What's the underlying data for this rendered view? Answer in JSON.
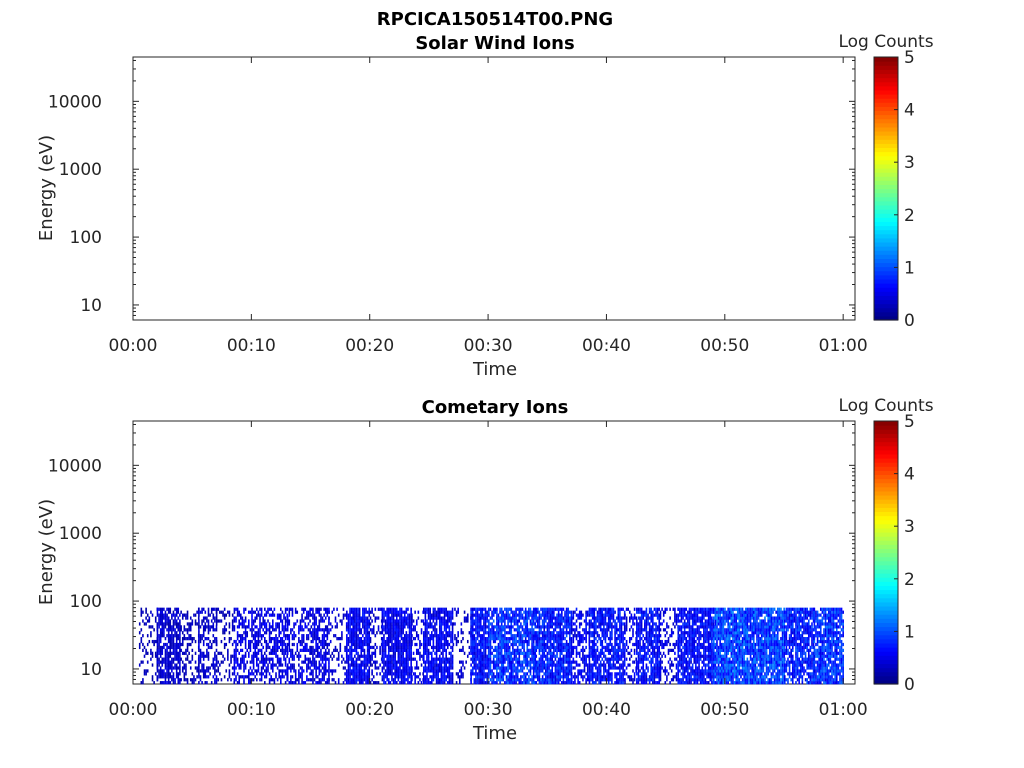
{
  "figure": {
    "title": "RPCICA150514T00.PNG"
  },
  "chart_data": [
    {
      "type": "heatmap",
      "title": "Solar Wind Ions",
      "xlabel": "Time",
      "ylabel": "Energy (eV)",
      "x_ticks": [
        "00:00",
        "00:10",
        "00:20",
        "00:30",
        "00:40",
        "00:50",
        "01:00"
      ],
      "x_range_minutes": [
        0,
        61
      ],
      "y_scale": "log",
      "y_ticks": [
        10,
        100,
        1000,
        10000
      ],
      "y_tick_labels": [
        "10",
        "100",
        "1000",
        "10000"
      ],
      "ylim": [
        6,
        45000
      ],
      "colorbar": {
        "label": "Log Counts",
        "ticks": [
          "0",
          "1",
          "2",
          "3",
          "4",
          "5"
        ],
        "range": [
          0,
          5
        ],
        "colormap": "jet"
      },
      "data_description": "no counts",
      "data": []
    },
    {
      "type": "heatmap",
      "title": "Cometary Ions",
      "xlabel": "Time",
      "ylabel": "Energy (eV)",
      "x_ticks": [
        "00:00",
        "00:10",
        "00:20",
        "00:30",
        "00:40",
        "00:50",
        "01:00"
      ],
      "x_range_minutes": [
        0,
        61
      ],
      "y_scale": "log",
      "y_ticks": [
        10,
        100,
        1000,
        10000
      ],
      "y_tick_labels": [
        "10",
        "100",
        "1000",
        "10000"
      ],
      "ylim": [
        6,
        45000
      ],
      "colorbar": {
        "label": "Log Counts",
        "ticks": [
          "0",
          "1",
          "2",
          "3",
          "4",
          "5"
        ],
        "range": [
          0,
          5
        ],
        "colormap": "jet"
      },
      "energy_range_eV": [
        6,
        80
      ],
      "time_range_minutes": [
        0.5,
        60
      ],
      "bands": [
        {
          "t_start": 0.5,
          "t_end": 2.0,
          "density": 0.3,
          "log_counts": 0.3
        },
        {
          "t_start": 2.0,
          "t_end": 4.0,
          "density": 0.75,
          "log_counts": 0.4
        },
        {
          "t_start": 4.0,
          "t_end": 5.5,
          "density": 0.35,
          "log_counts": 0.3
        },
        {
          "t_start": 5.5,
          "t_end": 7.0,
          "density": 0.5,
          "log_counts": 0.4
        },
        {
          "t_start": 7.0,
          "t_end": 8.5,
          "density": 0.25,
          "log_counts": 0.3
        },
        {
          "t_start": 8.5,
          "t_end": 13.0,
          "density": 0.55,
          "log_counts": 0.5
        },
        {
          "t_start": 13.0,
          "t_end": 15.0,
          "density": 0.45,
          "log_counts": 0.5
        },
        {
          "t_start": 15.0,
          "t_end": 16.5,
          "density": 0.65,
          "log_counts": 0.5
        },
        {
          "t_start": 16.5,
          "t_end": 18.0,
          "density": 0.25,
          "log_counts": 0.4
        },
        {
          "t_start": 18.0,
          "t_end": 20.0,
          "density": 0.85,
          "log_counts": 0.6
        },
        {
          "t_start": 20.0,
          "t_end": 21.0,
          "density": 0.3,
          "log_counts": 0.4
        },
        {
          "t_start": 21.0,
          "t_end": 23.5,
          "density": 0.85,
          "log_counts": 0.6
        },
        {
          "t_start": 23.5,
          "t_end": 24.5,
          "density": 0.4,
          "log_counts": 0.5
        },
        {
          "t_start": 24.5,
          "t_end": 27.0,
          "density": 0.8,
          "log_counts": 0.6
        },
        {
          "t_start": 27.0,
          "t_end": 28.5,
          "density": 0.2,
          "log_counts": 0.4
        },
        {
          "t_start": 28.5,
          "t_end": 30.0,
          "density": 0.85,
          "log_counts": 0.7
        },
        {
          "t_start": 30.0,
          "t_end": 34.0,
          "density": 0.8,
          "log_counts": 0.9
        },
        {
          "t_start": 34.0,
          "t_end": 37.0,
          "density": 0.85,
          "log_counts": 0.8
        },
        {
          "t_start": 37.0,
          "t_end": 38.5,
          "density": 0.5,
          "log_counts": 0.6
        },
        {
          "t_start": 38.5,
          "t_end": 41.5,
          "density": 0.75,
          "log_counts": 0.7
        },
        {
          "t_start": 41.5,
          "t_end": 42.5,
          "density": 0.35,
          "log_counts": 0.5
        },
        {
          "t_start": 42.5,
          "t_end": 44.5,
          "density": 0.8,
          "log_counts": 0.7
        },
        {
          "t_start": 44.5,
          "t_end": 46.0,
          "density": 0.4,
          "log_counts": 0.5
        },
        {
          "t_start": 46.0,
          "t_end": 49.0,
          "density": 0.85,
          "log_counts": 0.7
        },
        {
          "t_start": 49.0,
          "t_end": 55.0,
          "density": 0.9,
          "log_counts": 1.0
        },
        {
          "t_start": 55.0,
          "t_end": 57.5,
          "density": 0.8,
          "log_counts": 0.8
        },
        {
          "t_start": 57.5,
          "t_end": 60.0,
          "density": 0.85,
          "log_counts": 0.9
        }
      ]
    }
  ]
}
